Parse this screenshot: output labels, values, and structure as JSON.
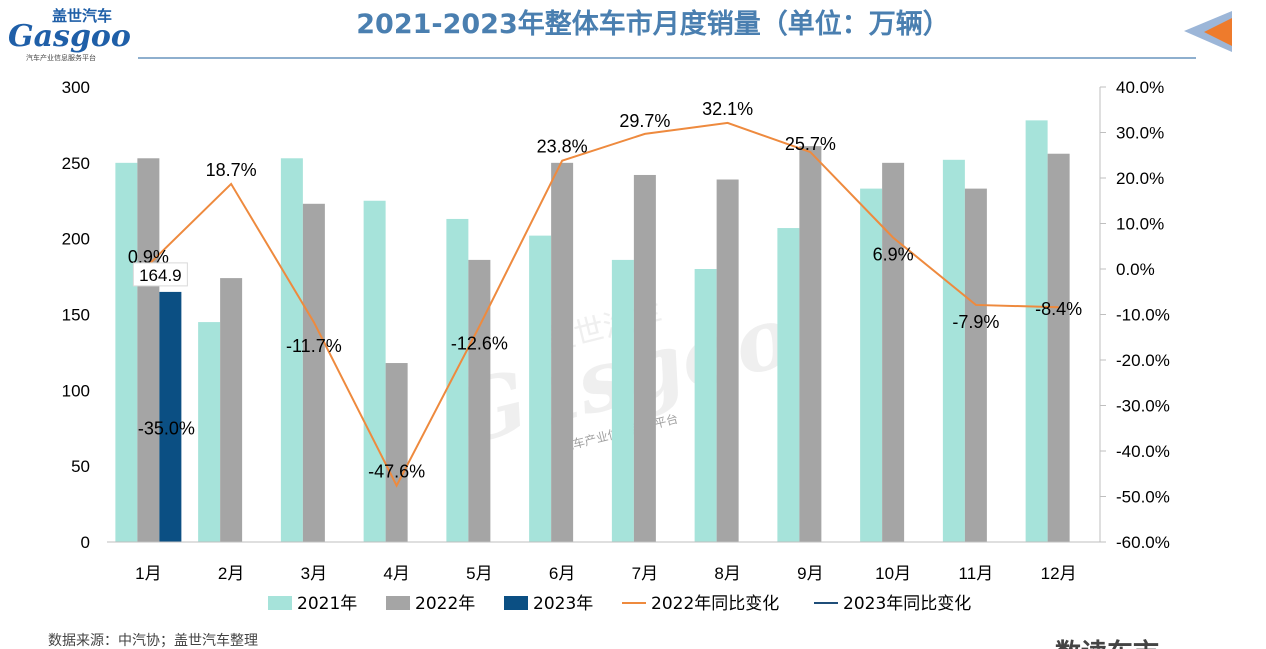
{
  "chart_data": {
    "type": "bar",
    "title": "2021-2023年整体车市月度销量（单位：万辆）",
    "categories": [
      "1月",
      "2月",
      "3月",
      "4月",
      "5月",
      "6月",
      "7月",
      "8月",
      "9月",
      "10月",
      "11月",
      "12月"
    ],
    "series": [
      {
        "name": "2021年",
        "type": "bar",
        "axis": "left",
        "color": "#a6e3da",
        "values": [
          250,
          145,
          253,
          225,
          213,
          202,
          186,
          180,
          207,
          233,
          252,
          278
        ]
      },
      {
        "name": "2022年",
        "type": "bar",
        "axis": "left",
        "color": "#a5a5a5",
        "values": [
          253,
          174,
          223,
          118,
          186,
          250,
          242,
          239,
          261,
          250,
          233,
          256
        ]
      },
      {
        "name": "2023年",
        "type": "bar",
        "axis": "left",
        "color": "#0b4f83",
        "values": [
          164.9,
          null,
          null,
          null,
          null,
          null,
          null,
          null,
          null,
          null,
          null,
          null
        ]
      },
      {
        "name": "2022年同比变化",
        "type": "line",
        "axis": "right",
        "color": "#ee8a3e",
        "values": [
          0.9,
          18.7,
          -11.7,
          -47.6,
          -12.6,
          23.8,
          29.7,
          32.1,
          25.7,
          6.9,
          -7.9,
          -8.4
        ]
      },
      {
        "name": "2023年同比变化",
        "type": "line",
        "axis": "right",
        "color": "#1f4e79",
        "values": [
          -35.0,
          null,
          null,
          null,
          null,
          null,
          null,
          null,
          null,
          null,
          null,
          null
        ]
      }
    ],
    "left_axis": {
      "min": 0,
      "max": 300,
      "step": 50,
      "ticks": [
        "0",
        "50",
        "100",
        "150",
        "200",
        "250",
        "300"
      ]
    },
    "right_axis": {
      "min": -60,
      "max": 40,
      "step": 10,
      "ticks": [
        "-60.0%",
        "-50.0%",
        "-40.0%",
        "-30.0%",
        "-20.0%",
        "-10.0%",
        "0.0%",
        "10.0%",
        "20.0%",
        "30.0%",
        "40.0%"
      ]
    },
    "data_labels": {
      "bar_2023": [
        "164.9"
      ],
      "line_2022": [
        "0.9%",
        "18.7%",
        "-11.7%",
        "-47.6%",
        "-12.6%",
        "23.8%",
        "29.7%",
        "32.1%",
        "25.7%",
        "6.9%",
        "-7.9%",
        "-8.4%"
      ],
      "line_2023": [
        "-35.0%"
      ]
    },
    "legend_position": "bottom",
    "grid": false
  },
  "header": {
    "logo_cn": "盖世汽车",
    "logo_en": "Gasgoo",
    "logo_sub": "汽车产业信息服务平台"
  },
  "watermark": {
    "cn": "盖世汽车",
    "en": "Gasgoo",
    "sub": "汽车产业信息服务平台"
  },
  "footer": {
    "source": "数据来源：中汽协；盖世汽车整理",
    "brand_partial": "数读车市"
  },
  "colors": {
    "title": "#4a7fb0",
    "accent_blue": "#4a7fb0",
    "accent_orange": "#ee7b2c"
  }
}
